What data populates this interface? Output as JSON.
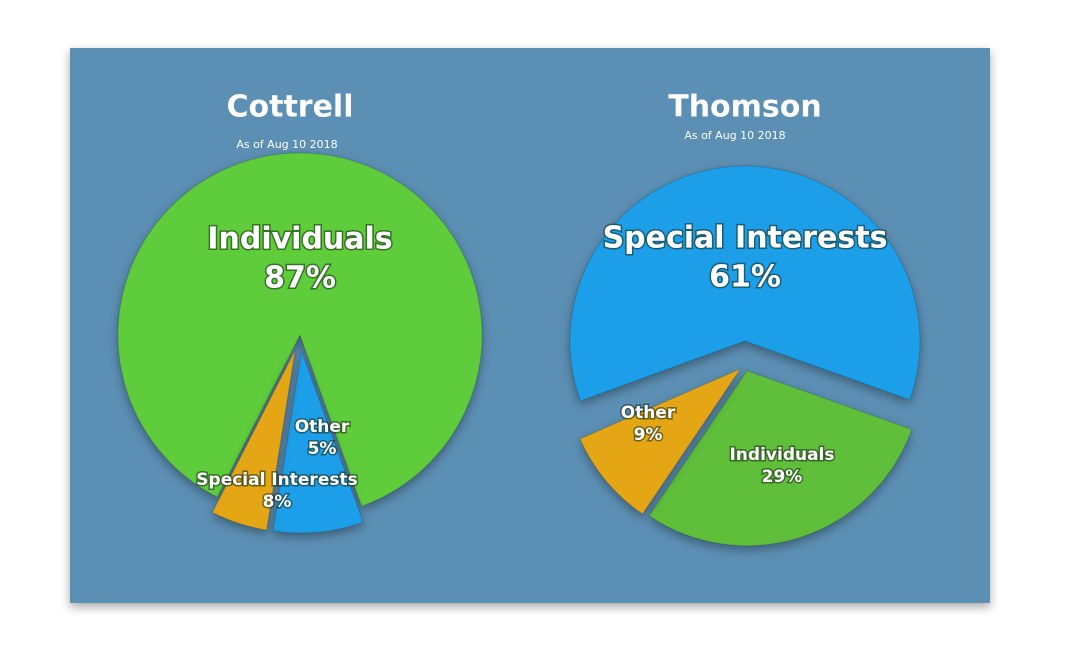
{
  "chart_data": [
    {
      "type": "pie",
      "title": "Cottrell",
      "subtitle": "As of Aug 10 2018",
      "categories": [
        "Individuals",
        "Special Interests",
        "Other"
      ],
      "values": [
        87,
        8,
        5
      ],
      "value_labels": [
        "87%",
        "8%",
        "5%"
      ],
      "colors": [
        "#5fcd3b",
        "#1b9fe8",
        "#e5a617"
      ]
    },
    {
      "type": "pie",
      "title": "Thomson",
      "subtitle": "As of Aug 10 2018",
      "categories": [
        "Special Interests",
        "Individuals",
        "Other"
      ],
      "values": [
        61,
        29,
        9
      ],
      "value_labels": [
        "61%",
        "29%",
        "9%"
      ],
      "colors": [
        "#1b9fe8",
        "#5fbf3b",
        "#e5a617"
      ]
    }
  ]
}
